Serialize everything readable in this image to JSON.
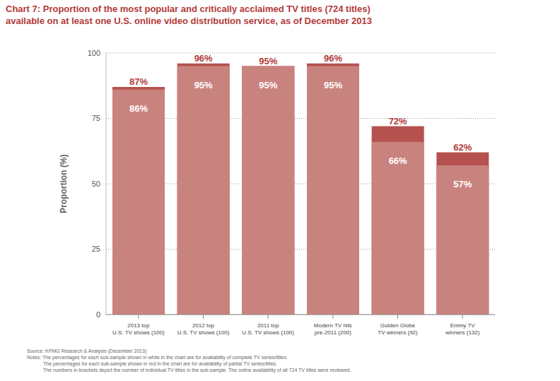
{
  "chart_data": {
    "type": "bar",
    "title": "Chart 7: Proportion of the most popular and critically acclaimed TV titles (724 titles)\navailable on at least one U.S. online video distribution service, as of December 2013",
    "ylabel": "Proportion (%)",
    "categories": [
      "2013 top\nU.S. TV shows (100)",
      "2012 top\nU.S. TV shows (100)",
      "2011 top\nU.S. TV shows (100)",
      "Modern TV hits\npre-2011 (200)",
      "Golden Globe\nTV winners (92)",
      "Emmy TV\nwinners (132)"
    ],
    "series": [
      {
        "color": "#b5524f",
        "values": [
          87,
          96,
          95,
          96,
          72,
          62
        ],
        "value_labels": [
          "87%",
          "96%",
          "95%",
          "96%",
          "72%",
          "62%"
        ]
      },
      {
        "color": "#c9837e",
        "values": [
          86,
          95,
          95,
          95,
          66,
          57
        ],
        "value_labels": [
          "86%",
          "95%",
          "95%",
          "95%",
          "66%",
          "57%"
        ]
      }
    ],
    "ylim": [
      0,
      100
    ],
    "yticks": [
      0,
      25,
      50,
      75,
      100
    ],
    "grid": true,
    "stacked": false,
    "data_labels": true,
    "source": "Source: KPMG Research & Analysis (December 2013)",
    "notes": [
      "Notes: The percentages for each sub-sample shown in white in the chart are for availability of complete TV series/titles.",
      "The percentages for each sub-sample shown in red in the chart are for availability of partial TV series/titles.",
      "The numbers in brackets depict the number of individual TV titles in the sub-sample. The online availability of all 724 TV titles were reviewed."
    ]
  }
}
